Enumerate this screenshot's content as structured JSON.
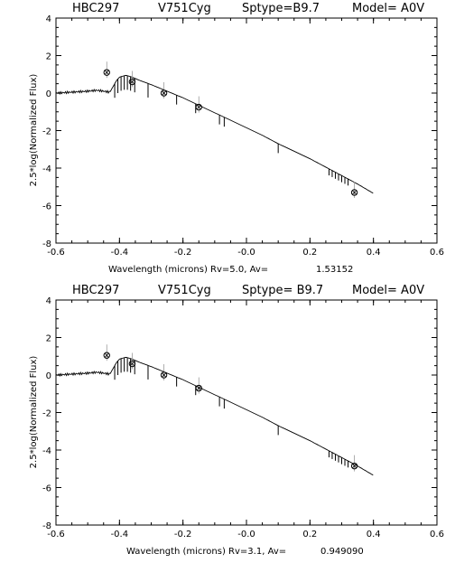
{
  "chart_data": [
    {
      "type": "line",
      "header": [
        "HBC297",
        "V751Cyg",
        "Sptype=B9.7",
        "Model= A0V"
      ],
      "xlabel": "Wavelength (microns) Rv=5.0, Av=",
      "av_value": "1.53152",
      "ylabel": "2.5*log(Normalized Flux)",
      "xlim": [
        -0.6,
        0.6
      ],
      "ylim": [
        -8,
        4
      ],
      "xticks": [
        "-0.6",
        "-0.4",
        "-0.2",
        "-0.0",
        "0.2",
        "0.4",
        "0.6"
      ],
      "yticks": [
        "-8",
        "-6",
        "-4",
        "-2",
        "0",
        "2",
        "4"
      ],
      "grid": false,
      "spectrum": {
        "x": [
          -0.6,
          -0.55,
          -0.5,
          -0.47,
          -0.45,
          -0.43,
          -0.42,
          -0.41,
          -0.4,
          -0.38,
          -0.36,
          -0.34,
          -0.3,
          -0.25,
          -0.2,
          -0.15,
          -0.1,
          -0.05,
          0.0,
          0.05,
          0.1,
          0.15,
          0.2,
          0.25,
          0.3,
          0.35,
          0.4
        ],
        "y": [
          0.0,
          0.05,
          0.1,
          0.15,
          0.1,
          0.05,
          0.35,
          0.65,
          0.85,
          0.95,
          0.85,
          0.7,
          0.45,
          0.1,
          -0.25,
          -0.65,
          -1.05,
          -1.45,
          -1.85,
          -2.25,
          -2.7,
          -3.1,
          -3.5,
          -3.95,
          -4.4,
          -4.85,
          -5.35
        ]
      },
      "absorption_lines": [
        -0.415,
        -0.405,
        -0.395,
        -0.385,
        -0.375,
        -0.365,
        -0.352,
        -0.31,
        -0.22,
        -0.16,
        -0.085,
        -0.07,
        0.1,
        0.26,
        0.27,
        0.28,
        0.29,
        0.3,
        0.31,
        0.32
      ],
      "observed": {
        "x": [
          -0.44,
          -0.36,
          -0.26,
          -0.15,
          0.34
        ],
        "y": [
          1.1,
          0.6,
          0.0,
          -0.75,
          -5.3
        ]
      }
    },
    {
      "type": "line",
      "header": [
        "HBC297",
        "V751Cyg",
        "Sptype= B9.7",
        "Model= A0V"
      ],
      "xlabel": "Wavelength (microns) Rv=3.1,  Av=",
      "av_value": "0.949090",
      "ylabel": "2.5*log(Normalized Flux)",
      "xlim": [
        -0.6,
        0.6
      ],
      "ylim": [
        -8,
        4
      ],
      "xticks": [
        "-0.6",
        "-0.4",
        "-0.2",
        "-0.0",
        "0.2",
        "0.4",
        "0.6"
      ],
      "yticks": [
        "-8",
        "-6",
        "-4",
        "-2",
        "0",
        "2",
        "4"
      ],
      "grid": false,
      "spectrum": {
        "x": [
          -0.6,
          -0.55,
          -0.5,
          -0.47,
          -0.45,
          -0.43,
          -0.42,
          -0.41,
          -0.4,
          -0.38,
          -0.36,
          -0.34,
          -0.3,
          -0.25,
          -0.2,
          -0.15,
          -0.1,
          -0.05,
          0.0,
          0.05,
          0.1,
          0.15,
          0.2,
          0.25,
          0.3,
          0.35,
          0.4
        ],
        "y": [
          0.0,
          0.05,
          0.1,
          0.15,
          0.1,
          0.05,
          0.35,
          0.65,
          0.85,
          0.95,
          0.85,
          0.7,
          0.45,
          0.1,
          -0.25,
          -0.65,
          -1.05,
          -1.45,
          -1.85,
          -2.25,
          -2.7,
          -3.1,
          -3.5,
          -3.95,
          -4.4,
          -4.85,
          -5.35
        ]
      },
      "absorption_lines": [
        -0.415,
        -0.405,
        -0.395,
        -0.385,
        -0.375,
        -0.365,
        -0.352,
        -0.31,
        -0.22,
        -0.16,
        -0.085,
        -0.07,
        0.1,
        0.26,
        0.27,
        0.28,
        0.29,
        0.3,
        0.31,
        0.32
      ],
      "observed": {
        "x": [
          -0.44,
          -0.36,
          -0.26,
          -0.15,
          0.34
        ],
        "y": [
          1.05,
          0.6,
          0.0,
          -0.7,
          -4.85
        ]
      }
    }
  ]
}
